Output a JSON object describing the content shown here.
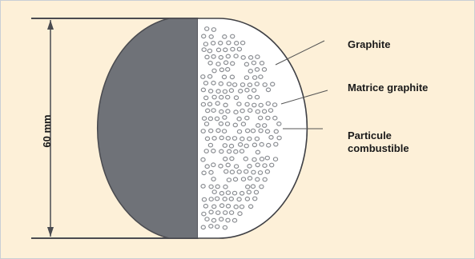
{
  "dimension": {
    "label": "60 mm"
  },
  "labels": {
    "graphite": "Graphite",
    "matrix": "Matrice graphite",
    "particle_line1": "Particule",
    "particle_line2": "combustible"
  },
  "colors": {
    "background": "#fdf0d8",
    "solid_half": "#6f7278",
    "outline": "#3f4045",
    "particle": "#8a8d92"
  }
}
